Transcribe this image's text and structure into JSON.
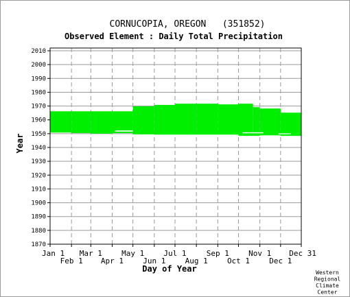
{
  "chart_data": {
    "type": "heatmap",
    "title": "CORNUCOPIA, OREGON   (351852)",
    "subtitle": "Observed Element : Daily Total Precipitation",
    "xlabel": "Day of Year",
    "ylabel": "Year",
    "credit": [
      "Western",
      "Regional",
      "Climate",
      "Center"
    ],
    "ylim": [
      1870,
      2012
    ],
    "xlim": [
      1,
      365
    ],
    "yticks": [
      1870,
      1880,
      1890,
      1900,
      1910,
      1920,
      1930,
      1940,
      1950,
      1960,
      1970,
      1980,
      1990,
      2000,
      2010
    ],
    "xticks_upper": [
      {
        "label": "Jan 1",
        "day": 1
      },
      {
        "label": "Mar 1",
        "day": 60
      },
      {
        "label": "May 1",
        "day": 121
      },
      {
        "label": "Jul 1",
        "day": 182
      },
      {
        "label": "Sep 1",
        "day": 244
      },
      {
        "label": "Nov 1",
        "day": 305
      },
      {
        "label": "Dec 31",
        "day": 365
      }
    ],
    "xticks_lower": [
      {
        "label": "Feb 1",
        "day": 32
      },
      {
        "label": "Apr 1",
        "day": 91
      },
      {
        "label": "Jun 1",
        "day": 152
      },
      {
        "label": "Aug 1",
        "day": 213
      },
      {
        "label": "Oct 1",
        "day": 274
      },
      {
        "label": "Dec 1",
        "day": 335
      }
    ],
    "grid": true,
    "data_color": "#00ee00",
    "coverage": [
      {
        "start_day": 1,
        "end_day": 32,
        "start_year": 1950.8,
        "end_year": 1966.2
      },
      {
        "start_day": 32,
        "end_day": 60,
        "start_year": 1950.4,
        "end_year": 1966.2
      },
      {
        "start_day": 60,
        "end_day": 91,
        "start_year": 1950.0,
        "end_year": 1966.2
      },
      {
        "start_day": 91,
        "end_day": 121,
        "start_year": 1950.4,
        "end_year": 1966.2
      },
      {
        "start_day": 121,
        "end_day": 152,
        "start_year": 1949.5,
        "end_year": 1969.8
      },
      {
        "start_day": 152,
        "end_day": 182,
        "start_year": 1949.3,
        "end_year": 1970.8
      },
      {
        "start_day": 182,
        "end_day": 213,
        "start_year": 1949.3,
        "end_year": 1971.7
      },
      {
        "start_day": 213,
        "end_day": 244,
        "start_year": 1949.3,
        "end_year": 1971.7
      },
      {
        "start_day": 244,
        "end_day": 274,
        "start_year": 1949.3,
        "end_year": 1971.2
      },
      {
        "start_day": 274,
        "end_day": 295,
        "start_year": 1948.4,
        "end_year": 1971.7
      },
      {
        "start_day": 295,
        "end_day": 305,
        "start_year": 1948.4,
        "end_year": 1969.2
      },
      {
        "start_day": 305,
        "end_day": 335,
        "start_year": 1948.8,
        "end_year": 1968.2
      },
      {
        "start_day": 335,
        "end_day": 365,
        "start_year": 1948.4,
        "end_year": 1965.2
      }
    ],
    "gaps": [
      {
        "start_day": 95,
        "end_day": 121,
        "start_year": 1951.5,
        "end_year": 1952.3
      },
      {
        "start_day": 280,
        "end_day": 310,
        "start_year": 1950.3,
        "end_year": 1951.0
      },
      {
        "start_day": 332,
        "end_day": 350,
        "start_year": 1949.6,
        "end_year": 1950.2
      }
    ]
  }
}
